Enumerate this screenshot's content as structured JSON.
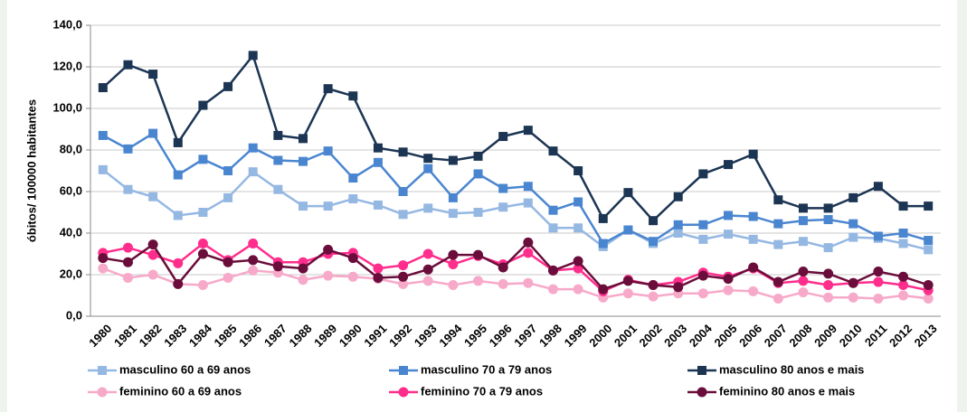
{
  "chart_data": {
    "type": "line",
    "y_label": "óbitos/ 100000 habitantes",
    "categories": [
      "1980",
      "1981",
      "1982",
      "1983",
      "1984",
      "1985",
      "1986",
      "1987",
      "1988",
      "1989",
      "1990",
      "1991",
      "1992",
      "1993",
      "1994",
      "1995",
      "1996",
      "1997",
      "1998",
      "1999",
      "2000",
      "2001",
      "2002",
      "2003",
      "2004",
      "2005",
      "2006",
      "2007",
      "2008",
      "2009",
      "2010",
      "2011",
      "2012",
      "2013"
    ],
    "ylim": [
      0,
      140
    ],
    "yticks": [
      {
        "value": 0,
        "label": "0,0"
      },
      {
        "value": 20,
        "label": "20,0"
      },
      {
        "value": 40,
        "label": "40,0"
      },
      {
        "value": 60,
        "label": "60,0"
      },
      {
        "value": 80,
        "label": "80,0"
      },
      {
        "value": 100,
        "label": "100,0"
      },
      {
        "value": 120,
        "label": "120,0"
      },
      {
        "value": 140,
        "label": "140,0"
      }
    ],
    "grid": true,
    "legend": "bottom",
    "series": [
      {
        "name": "masculino 60 a 69 anos",
        "color": "#95b8e3",
        "marker": "square",
        "values": [
          70.5,
          61,
          57.5,
          48.5,
          50,
          57,
          69.5,
          61,
          53,
          53,
          56.5,
          53.5,
          49,
          52,
          49.5,
          50,
          52.5,
          54.5,
          42.5,
          42.5,
          33.5,
          41.5,
          35,
          40,
          37,
          39.5,
          37,
          34.5,
          36,
          33,
          38,
          37.5,
          35,
          32
        ]
      },
      {
        "name": "masculino 70 a 79 anos",
        "color": "#4a86d0",
        "marker": "square",
        "values": [
          87,
          80.5,
          88,
          68,
          75.5,
          70,
          81,
          75,
          74.5,
          79.5,
          66.5,
          74,
          60,
          71,
          57,
          68.5,
          61.5,
          62.5,
          51,
          55,
          35,
          41.5,
          36,
          44,
          44,
          48.5,
          48,
          44.5,
          46,
          46.5,
          44.5,
          38.5,
          40,
          36.5
        ]
      },
      {
        "name": "masculino 80 anos e mais",
        "color": "#1c3553",
        "marker": "square",
        "values": [
          110,
          121,
          116.5,
          83.5,
          101.5,
          110.5,
          125.5,
          87,
          85.5,
          109.5,
          106,
          81,
          79,
          76,
          75,
          77,
          86.5,
          89.5,
          79.5,
          70,
          47,
          59.5,
          46,
          57.5,
          68.5,
          73,
          78,
          56,
          52,
          52,
          57,
          62.5,
          53,
          53
        ]
      },
      {
        "name": "feminino 60 a 69 anos",
        "color": "#f7a9c9",
        "marker": "circle",
        "values": [
          23,
          18.5,
          20,
          15.5,
          15,
          18.5,
          22,
          21,
          17.5,
          19.5,
          19,
          18,
          15.5,
          17,
          15,
          17,
          15.5,
          16,
          13,
          13,
          9,
          11,
          9.5,
          11,
          11,
          12.5,
          12,
          8.5,
          11.5,
          9,
          9,
          8.5,
          10,
          8.5
        ]
      },
      {
        "name": "feminino 70 a 79 anos",
        "color": "#ff2d8c",
        "marker": "circle",
        "values": [
          30.5,
          33,
          29.5,
          25.5,
          35,
          27,
          35,
          26,
          26,
          30,
          30.5,
          23,
          24.5,
          30,
          25,
          29,
          25,
          30.5,
          22,
          23,
          12,
          17.5,
          15,
          16.5,
          21,
          19,
          23,
          16,
          17,
          15,
          16,
          16.5,
          15,
          12.5
        ]
      },
      {
        "name": "feminino 80 anos e mais",
        "color": "#6a0d3b",
        "marker": "circle",
        "values": [
          28,
          26,
          34.5,
          15.5,
          30,
          26,
          27,
          24,
          23,
          32,
          28,
          18.5,
          19,
          22.5,
          29.5,
          29.5,
          23.5,
          35.5,
          22,
          26.5,
          13,
          17,
          15,
          14,
          19.5,
          18,
          23.5,
          16.5,
          21.5,
          20.5,
          16,
          21.5,
          19,
          15
        ]
      }
    ]
  }
}
